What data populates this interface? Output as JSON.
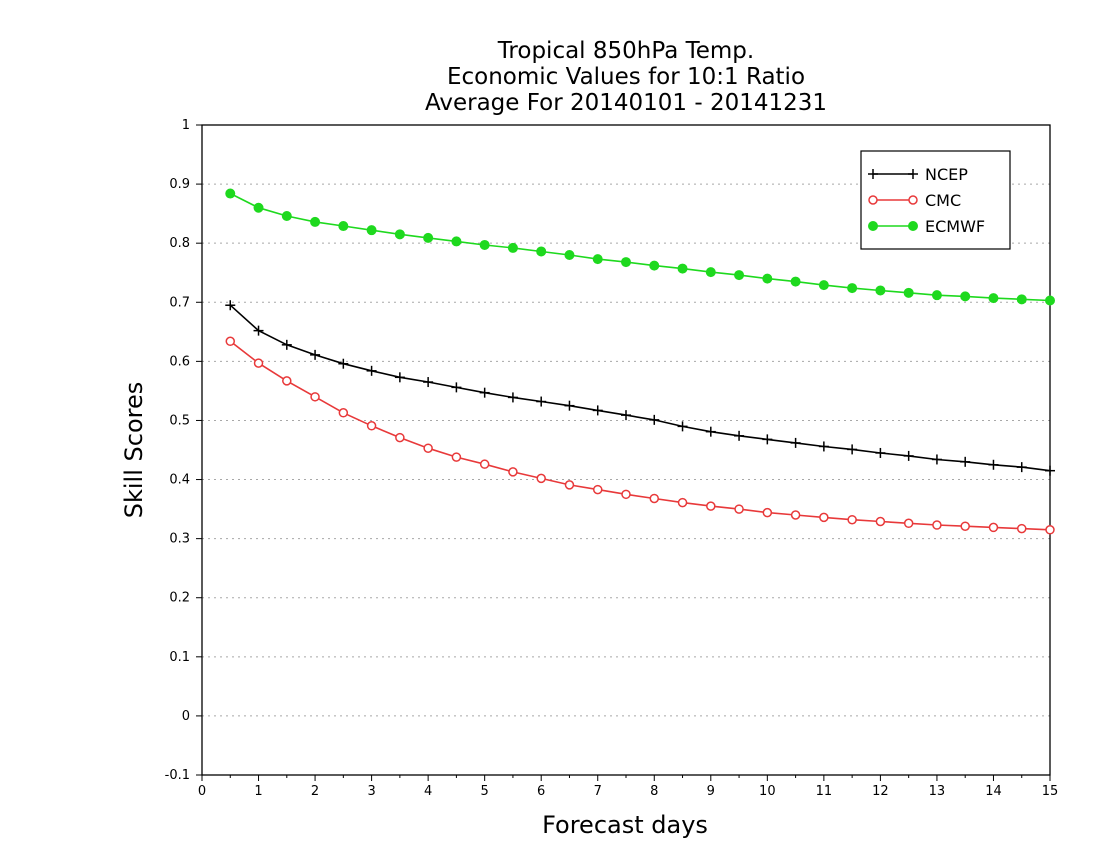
{
  "chart_data": {
    "type": "line",
    "title": [
      "Tropical 850hPa Temp.",
      "Economic Values for 10:1 Ratio",
      "Average For 20140101 - 20141231"
    ],
    "xlabel": "Forecast days",
    "ylabel": "Skill Scores",
    "xlim": [
      0,
      15
    ],
    "ylim": [
      -0.1,
      1
    ],
    "x_ticks": [
      0,
      1,
      2,
      3,
      4,
      5,
      6,
      7,
      8,
      9,
      10,
      11,
      12,
      13,
      14,
      15
    ],
    "y_ticks": [
      -0.1,
      0,
      0.1,
      0.2,
      0.3,
      0.4,
      0.5,
      0.6,
      0.7,
      0.8,
      0.9,
      1
    ],
    "y_tick_labels": [
      "-0.1",
      "0",
      "0.1",
      "0.2",
      "0.3",
      "0.4",
      "0.5",
      "0.6",
      "0.7",
      "0.8",
      "0.9",
      "1"
    ],
    "grid": "horizontal dotted",
    "legend_position": "top-right",
    "x": [
      0.5,
      1,
      1.5,
      2,
      2.5,
      3,
      3.5,
      4,
      4.5,
      5,
      5.5,
      6,
      6.5,
      7,
      7.5,
      8,
      8.5,
      9,
      9.5,
      10,
      10.5,
      11,
      11.5,
      12,
      12.5,
      13,
      13.5,
      14,
      14.5,
      15
    ],
    "series": [
      {
        "name": "NCEP",
        "color": "#000000",
        "marker": "plus",
        "values": [
          0.695,
          0.652,
          0.628,
          0.611,
          0.596,
          0.584,
          0.573,
          0.565,
          0.556,
          0.547,
          0.539,
          0.532,
          0.525,
          0.517,
          0.509,
          0.501,
          0.49,
          0.481,
          0.474,
          0.468,
          0.462,
          0.456,
          0.451,
          0.445,
          0.44,
          0.434,
          0.43,
          0.425,
          0.421,
          0.415
        ]
      },
      {
        "name": "CMC",
        "color": "#e8393a",
        "marker": "open-circle",
        "values": [
          0.634,
          0.597,
          0.567,
          0.54,
          0.513,
          0.491,
          0.471,
          0.453,
          0.438,
          0.426,
          0.413,
          0.402,
          0.391,
          0.383,
          0.375,
          0.368,
          0.361,
          0.355,
          0.35,
          0.344,
          0.34,
          0.336,
          0.332,
          0.329,
          0.326,
          0.323,
          0.321,
          0.319,
          0.317,
          0.315
        ]
      },
      {
        "name": "ECMWF",
        "color": "#1ed91e",
        "marker": "filled-circle",
        "values": [
          0.884,
          0.86,
          0.846,
          0.836,
          0.829,
          0.822,
          0.815,
          0.809,
          0.803,
          0.797,
          0.792,
          0.786,
          0.78,
          0.773,
          0.768,
          0.762,
          0.757,
          0.751,
          0.746,
          0.74,
          0.735,
          0.729,
          0.724,
          0.72,
          0.716,
          0.712,
          0.71,
          0.707,
          0.705,
          0.703
        ]
      }
    ]
  }
}
